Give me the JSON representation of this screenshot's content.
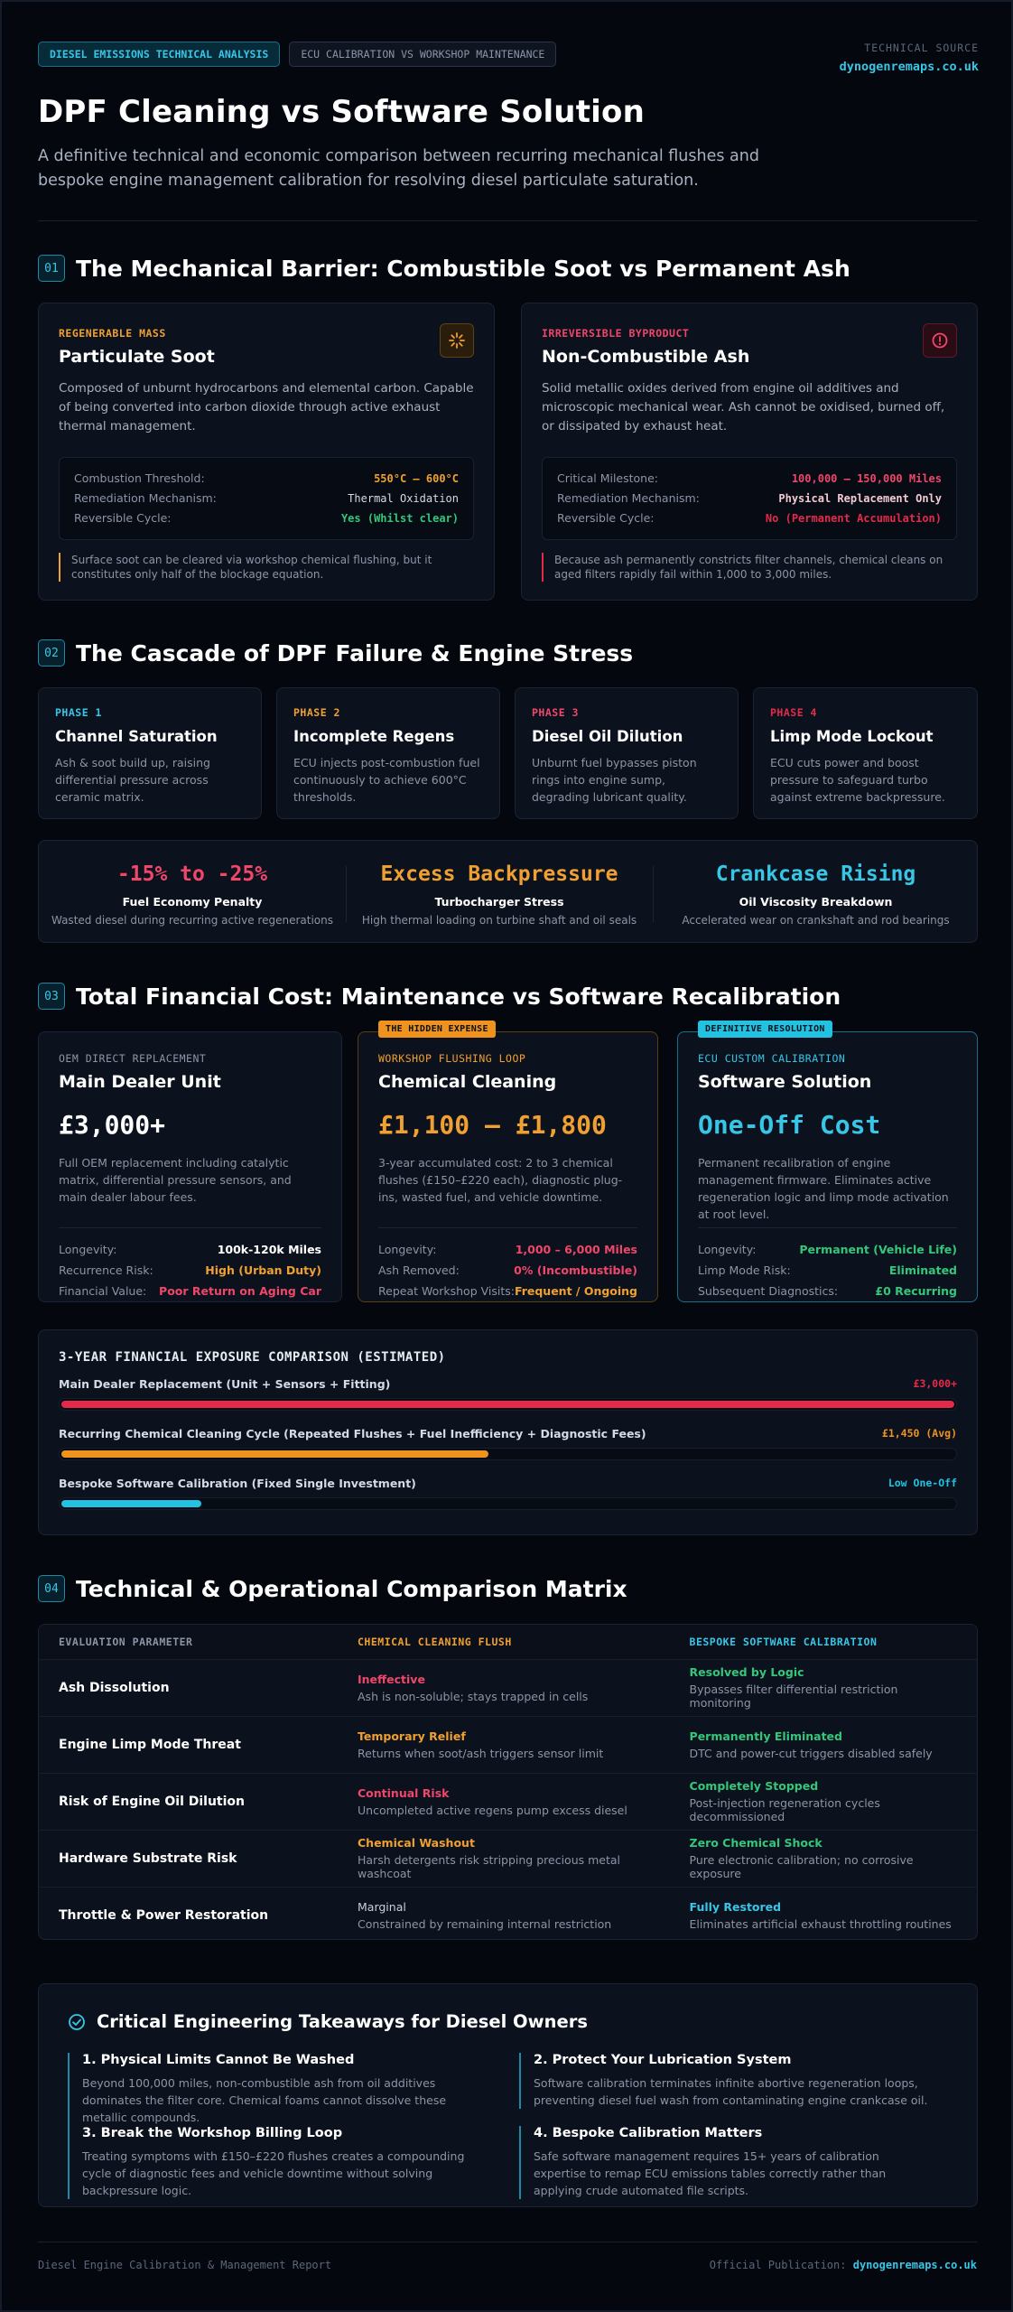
{
  "header": {
    "tag_primary": "DIESEL EMISSIONS TECHNICAL ANALYSIS",
    "tag_secondary": "ECU CALIBRATION VS WORKSHOP MAINTENANCE",
    "source_label": "TECHNICAL SOURCE",
    "source_site": "dynogenremaps.co.uk",
    "title": "DPF Cleaning vs Software Solution",
    "lead": "A definitive technical and economic comparison between recurring mechanical flushes and bespoke engine management calibration for resolving diesel particulate saturation."
  },
  "section1": {
    "num": "01",
    "title": "The Mechanical Barrier: Combustible Soot vs Permanent Ash",
    "soot": {
      "eyebrow": "REGENERABLE MASS",
      "title": "Particulate Soot",
      "icon": "sun-burst-icon",
      "body": "Composed of unburnt hydrocarbons and elemental carbon. Capable of being converted into carbon dioxide through active exhaust thermal management.",
      "rows": [
        {
          "k": "Combustion Threshold:",
          "v": "550°C – 600°C"
        },
        {
          "k": "Remediation Mechanism:",
          "v": "Thermal Oxidation"
        },
        {
          "k": "Reversible Cycle:",
          "v": "Yes (Whilst clear)"
        }
      ],
      "note": "Surface soot can be cleared via workshop chemical flushing, but it constitutes only half of the blockage equation."
    },
    "ash": {
      "eyebrow": "IRREVERSIBLE BYPRODUCT",
      "title": "Non-Combustible Ash",
      "icon": "alert-circle-icon",
      "body": "Solid metallic oxides derived from engine oil additives and microscopic mechanical wear. Ash cannot be oxidised, burned off, or dissipated by exhaust heat.",
      "rows": [
        {
          "k": "Critical Milestone:",
          "v": "100,000 – 150,000 Miles"
        },
        {
          "k": "Remediation Mechanism:",
          "v": "Physical Replacement Only"
        },
        {
          "k": "Reversible Cycle:",
          "v": "No (Permanent Accumulation)"
        }
      ],
      "note": "Because ash permanently constricts filter channels, chemical cleans on aged filters rapidly fail within 1,000 to 3,000 miles."
    }
  },
  "section2": {
    "num": "02",
    "title": "The Cascade of DPF Failure & Engine Stress",
    "phases": [
      {
        "label": "PHASE 1",
        "title": "Channel Saturation",
        "body": "Ash & soot build up, raising differential pressure across ceramic matrix."
      },
      {
        "label": "PHASE 2",
        "title": "Incomplete Regens",
        "body": "ECU injects post-combustion fuel continuously to achieve 600°C thresholds."
      },
      {
        "label": "PHASE 3",
        "title": "Diesel Oil Dilution",
        "body": "Unburnt fuel bypasses piston rings into engine sump, degrading lubricant quality."
      },
      {
        "label": "PHASE 4",
        "title": "Limp Mode Lockout",
        "body": "ECU cuts power and boost pressure to safeguard turbo against extreme backpressure."
      }
    ],
    "stats": [
      {
        "big": "-15% to -25%",
        "title": "Fuel Economy Penalty",
        "desc": "Wasted diesel during recurring active regenerations"
      },
      {
        "big": "Excess Backpressure",
        "title": "Turbocharger Stress",
        "desc": "High thermal loading on turbine shaft and oil seals"
      },
      {
        "big": "Crankcase Rising",
        "title": "Oil Viscosity Breakdown",
        "desc": "Accelerated wear on crankshaft and rod bearings"
      }
    ]
  },
  "section3": {
    "num": "03",
    "title": "Total Financial Cost: Maintenance vs Software Recalibration",
    "cards": [
      {
        "tag": "",
        "eyebrow": "OEM DIRECT REPLACEMENT",
        "title": "Main Dealer Unit",
        "price": "£3,000+",
        "body": "Full OEM replacement including catalytic matrix, differential pressure sensors, and main dealer labour fees.",
        "rows": [
          {
            "k": "Longevity:",
            "v": "100k-120k Miles"
          },
          {
            "k": "Recurrence Risk:",
            "v": "High (Urban Duty)"
          },
          {
            "k": "Financial Value:",
            "v": "Poor Return on Aging Car"
          }
        ]
      },
      {
        "tag": "THE HIDDEN EXPENSE",
        "eyebrow": "WORKSHOP FLUSHING LOOP",
        "title": "Chemical Cleaning",
        "price": "£1,100 – £1,800",
        "body": "3-year accumulated cost: 2 to 3 chemical flushes (£150–£220 each), diagnostic plug-ins, wasted fuel, and vehicle downtime.",
        "rows": [
          {
            "k": "Longevity:",
            "v": "1,000 – 6,000 Miles"
          },
          {
            "k": "Ash Removed:",
            "v": "0% (Incombustible)"
          },
          {
            "k": "Repeat Workshop Visits:",
            "v": "Frequent / Ongoing"
          }
        ]
      },
      {
        "tag": "DEFINITIVE RESOLUTION",
        "eyebrow": "ECU CUSTOM CALIBRATION",
        "title": "Software Solution",
        "price": "One-Off Cost",
        "body": "Permanent recalibration of engine management firmware. Eliminates active regeneration logic and limp mode activation at root level.",
        "rows": [
          {
            "k": "Longevity:",
            "v": "Permanent (Vehicle Life)"
          },
          {
            "k": "Limp Mode Risk:",
            "v": "Eliminated"
          },
          {
            "k": "Subsequent Diagnostics:",
            "v": "£0 Recurring"
          }
        ]
      }
    ],
    "exposure": {
      "title": "3-YEAR FINANCIAL EXPOSURE COMPARISON (ESTIMATED)",
      "bars": [
        {
          "label": "Main Dealer Replacement (Unit + Sensors + Fitting)",
          "value_label": "£3,000+",
          "fraction": 1.0,
          "color": "#e5294a"
        },
        {
          "label": "Recurring Chemical Cleaning Cycle (Repeated Flushes + Fuel Inefficiency + Diagnostic Fees)",
          "value_label": "£1,450 (Avg)",
          "fraction": 0.48,
          "color": "#f0921e"
        },
        {
          "label": "Bespoke Software Calibration (Fixed Single Investment)",
          "value_label": "Low One-Off",
          "fraction": 0.16,
          "color": "#22c3e2"
        }
      ]
    }
  },
  "section4": {
    "num": "04",
    "title": "Technical & Operational Comparison Matrix",
    "headers": [
      "EVALUATION PARAMETER",
      "CHEMICAL CLEANING FLUSH",
      "BESPOKE SOFTWARE CALIBRATION"
    ],
    "rows": [
      {
        "param": "Ash Dissolution",
        "c_status": "Ineffective",
        "c_color": "#f0466a",
        "c_desc": "Ash is non-soluble; stays trapped in cells",
        "s_status": "Resolved by Logic",
        "s_color": "#34c77b",
        "s_desc": "Bypasses filter differential restriction monitoring"
      },
      {
        "param": "Engine Limp Mode Threat",
        "c_status": "Temporary Relief",
        "c_color": "#f0a030",
        "c_desc": "Returns when soot/ash triggers sensor limit",
        "s_status": "Permanently Eliminated",
        "s_color": "#34c77b",
        "s_desc": "DTC and power-cut triggers disabled safely"
      },
      {
        "param": "Risk of Engine Oil Dilution",
        "c_status": "Continual Risk",
        "c_color": "#f0466a",
        "c_desc": "Uncompleted active regens pump excess diesel",
        "s_status": "Completely Stopped",
        "s_color": "#34c77b",
        "s_desc": "Post-injection regeneration cycles decommissioned"
      },
      {
        "param": "Hardware Substrate Risk",
        "c_status": "Chemical Washout",
        "c_color": "#f0a030",
        "c_desc": "Harsh detergents risk stripping precious metal washcoat",
        "s_status": "Zero Chemical Shock",
        "s_color": "#34c77b",
        "s_desc": "Pure electronic calibration; no corrosive exposure"
      },
      {
        "param": "Throttle & Power Restoration",
        "c_status": "Marginal",
        "c_color": "#c9d0da",
        "c_desc": "Constrained by remaining internal restriction",
        "s_status": "Fully Restored",
        "s_color": "#38c6e6",
        "s_desc": "Eliminates artificial exhaust throttling routines"
      }
    ]
  },
  "takeaways": {
    "title": "Critical Engineering Takeaways for Diesel Owners",
    "items": [
      {
        "title": "1. Physical Limits Cannot Be Washed",
        "body": "Beyond 100,000 miles, non-combustible ash from oil additives dominates the filter core. Chemical foams cannot dissolve these metallic compounds."
      },
      {
        "title": "2. Protect Your Lubrication System",
        "body": "Software calibration terminates infinite abortive regeneration loops, preventing diesel fuel wash from contaminating engine crankcase oil."
      },
      {
        "title": "3. Break the Workshop Billing Loop",
        "body": "Treating symptoms with £150–£220 flushes creates a compounding cycle of diagnostic fees and vehicle downtime without solving backpressure logic."
      },
      {
        "title": "4. Bespoke Calibration Matters",
        "body": "Safe software management requires 15+ years of calibration expertise to remap ECU emissions tables correctly rather than applying crude automated file scripts."
      }
    ]
  },
  "footer": {
    "left": "Diesel Engine Calibration & Management Report",
    "right_label": "Official Publication:",
    "right_site": "dynogenremaps.co.uk"
  },
  "colors": {
    "accent": "#38c6e6",
    "amber": "#f0a030",
    "red": "#f0466a",
    "green": "#34c77b"
  }
}
